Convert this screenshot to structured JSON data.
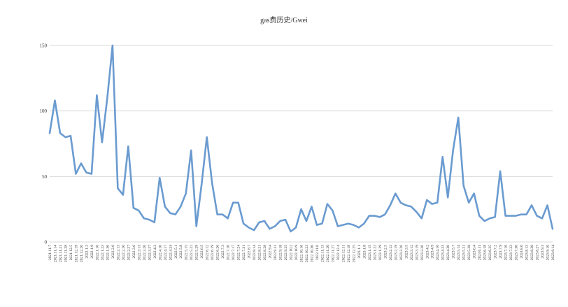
{
  "chart_data": {
    "type": "line",
    "title": "gas费历史/Gwei",
    "xlabel": "",
    "ylabel": "",
    "ylim": [
      0,
      150
    ],
    "yticks": [
      0,
      50,
      100,
      150
    ],
    "grid": true,
    "legend": "none",
    "series_color": "#6a9bd0",
    "grid_color": "#d9d9d9",
    "series": [
      {
        "values": [
          83,
          108,
          83,
          80,
          81,
          52,
          60,
          53,
          52,
          112,
          76,
          110,
          150,
          41,
          36,
          73,
          26,
          24,
          18,
          17,
          15,
          49,
          27,
          22,
          21,
          27,
          37,
          70,
          12,
          44,
          80,
          45,
          21,
          21,
          18,
          30,
          30,
          14,
          11,
          9,
          15,
          16,
          10,
          12,
          16,
          17,
          8,
          11,
          25,
          16,
          27,
          13,
          14,
          29,
          24,
          12,
          13,
          14,
          13,
          11,
          14,
          20,
          20,
          19,
          21,
          28,
          37,
          30,
          28,
          27,
          23,
          18,
          32,
          29,
          30,
          65,
          34,
          70,
          95,
          43,
          30,
          37,
          20,
          16,
          18,
          19,
          54,
          20,
          20,
          20,
          21,
          21,
          28,
          20,
          18,
          28,
          10
        ]
      }
    ],
    "categories": [
      "2021.11.7",
      "2021.11.14",
      "2021.11.21",
      "2021.11.28",
      "2021.12.5",
      "2021.12.19",
      "2021.12.26",
      "2022.1.2",
      "2022.1.9",
      "2022.1.16",
      "2022.1.23",
      "2022.1.30",
      "2022.2.6",
      "2022.2.13",
      "2022.2.20",
      "2022.2.27",
      "2022.3.6",
      "2022.3.13",
      "2022.3.20",
      "2022.3.27",
      "2022.4.3",
      "2022.4.10",
      "2022.4.17",
      "2022.4.24",
      "2022.5.1",
      "2022.5.8",
      "2022.5.15",
      "2022.5.22",
      "2022.5.29",
      "2022.6.5",
      "2022.6.12",
      "2022.6.19",
      "2022.6.26",
      "2022.7.3",
      "2022.7.10",
      "2022.7.17",
      "2022.7.24",
      "2022.7.31",
      "2022.8.7",
      "2022.8.14",
      "2022.8.21",
      "2022.8.28",
      "2022.9.4",
      "2022.9.11",
      "2022.9.18",
      "2022.9.25",
      "2022.10.2",
      "2022.10.9",
      "2022.10.16",
      "2022.10.23",
      "2022.10.30",
      "2022.11.6",
      "2022.11.13",
      "2022.11.20",
      "2022.11.27",
      "2022.12.4",
      "2022.12.11",
      "2022.12.18",
      "2022.12.25",
      "2023.1.1",
      "2023.1.8",
      "2023.1.15",
      "2023.1.22",
      "2023.1.29",
      "2023.2.5",
      "2023.2.12",
      "2023.2.19",
      "2023.2.26",
      "2023.3.5",
      "2023.3.12",
      "2023.3.19",
      "2023.3.26",
      "2023.4.2",
      "2023.4.9",
      "2023.4.16",
      "2023.4.23",
      "2023.4.30",
      "2023.5.7",
      "2023.5.14",
      "2023.5.21",
      "2023.5.28",
      "2023.6.4",
      "2023.6.11",
      "2023.6.18",
      "2023.6.25",
      "2023.7.2",
      "2023.7.9",
      "2023.7.16",
      "2023.7.23",
      "2023.7.30",
      "2023.8.6",
      "2023.8.13",
      "2023.8.20",
      "2023.8.27",
      "2023.9.3",
      "2023.9.10",
      "2023.9.14"
    ]
  }
}
